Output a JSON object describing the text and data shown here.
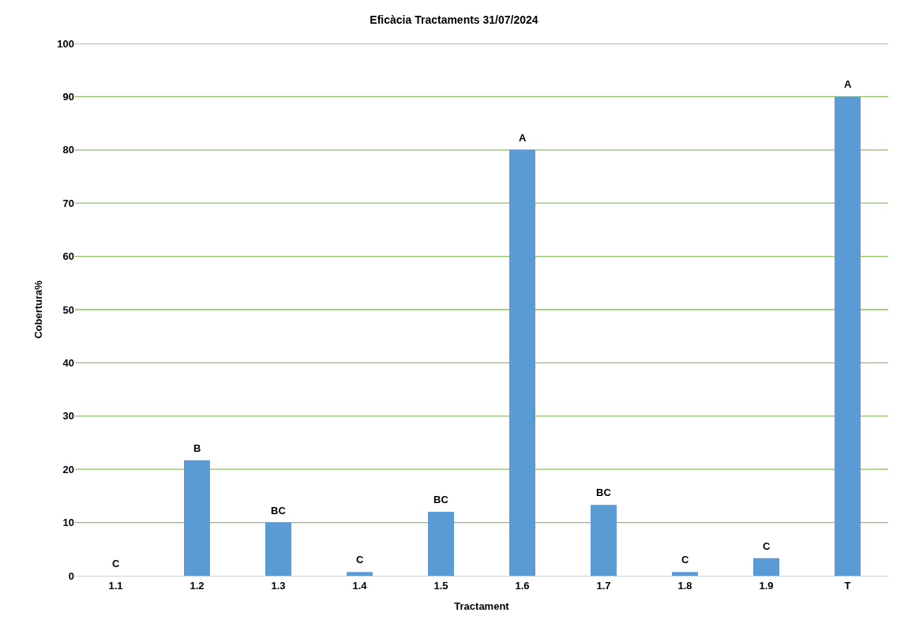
{
  "chart_data": {
    "type": "bar",
    "title": "Eficàcia Tractaments 31/07/2024",
    "xlabel": "Tractament",
    "ylabel": "Cobertura%",
    "categories": [
      "1.1",
      "1.2",
      "1.3",
      "1.4",
      "1.5",
      "1.6",
      "1.7",
      "1.8",
      "1.9",
      "T"
    ],
    "values": [
      0,
      21.7,
      10,
      0.7,
      12,
      80,
      13.3,
      0.7,
      3.3,
      90
    ],
    "color": "#5b9bd5",
    "ylim": [
      0,
      100
    ],
    "yticks": [
      0,
      10,
      20,
      30,
      40,
      50,
      60,
      70,
      80,
      90,
      100
    ],
    "grid": "y",
    "annotations": [
      {
        "text": "C",
        "x": "1.1",
        "y": 0
      },
      {
        "text": "B",
        "x": "1.2",
        "y": 21.7
      },
      {
        "text": "BC",
        "x": "1.3",
        "y": 10
      },
      {
        "text": "C",
        "x": "1.4",
        "y": 0.7
      },
      {
        "text": "BC",
        "x": "1.5",
        "y": 12
      },
      {
        "text": "A",
        "x": "1.6",
        "y": 80
      },
      {
        "text": "BC",
        "x": "1.7",
        "y": 13.3
      },
      {
        "text": "C",
        "x": "1.8",
        "y": 0.7
      },
      {
        "text": "C",
        "x": "1.9",
        "y": 3.3
      },
      {
        "text": "A",
        "x": "T",
        "y": 90
      }
    ]
  }
}
